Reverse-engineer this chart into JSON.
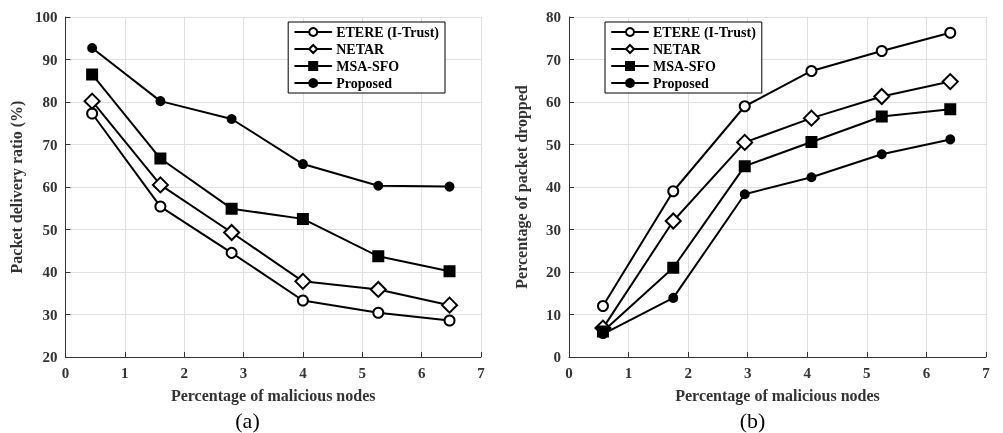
{
  "chart_data": [
    {
      "type": "line",
      "xlabel": "Percentage of malicious nodes",
      "ylabel": "Packet delivery ratio (%)",
      "xlim": [
        0,
        7
      ],
      "xticks": [
        0,
        1,
        2,
        3,
        4,
        5,
        6,
        7
      ],
      "ylim": [
        20,
        100
      ],
      "yticks": [
        20,
        30,
        40,
        50,
        60,
        70,
        80,
        90,
        100
      ],
      "grid": true,
      "legend": "top right",
      "line_style": "solid",
      "annotations": [
        "(a)"
      ],
      "x": [
        0.45,
        1.6,
        2.8,
        4.0,
        5.27,
        6.47
      ],
      "series": [
        {
          "name": "ETERE (I-Trust)",
          "color": "#000000",
          "marker": "circle",
          "values": [
            77.3,
            55.4,
            44.5,
            33.3,
            30.4,
            28.6
          ]
        },
        {
          "name": "NETAR",
          "color": "#000000",
          "marker": "diamond",
          "values": [
            80.2,
            60.5,
            49.3,
            37.8,
            35.9,
            32.2
          ]
        },
        {
          "name": "MSA-SFO",
          "color": "#000000",
          "marker": "square",
          "values": [
            86.5,
            66.7,
            54.9,
            52.5,
            43.7,
            40.2
          ]
        },
        {
          "name": "Proposed",
          "color": "#000000",
          "marker": "circle",
          "values": [
            92.7,
            80.2,
            76.0,
            65.4,
            60.3,
            60.1
          ]
        }
      ]
    },
    {
      "type": "line",
      "xlabel": "Percentage of malicious nodes",
      "ylabel": "Percentage of packet dropped",
      "xlim": [
        0,
        7
      ],
      "xticks": [
        0,
        1,
        2,
        3,
        4,
        5,
        6,
        7
      ],
      "ylim": [
        0,
        80
      ],
      "yticks": [
        0,
        10,
        20,
        30,
        40,
        50,
        60,
        70,
        80
      ],
      "grid": true,
      "legend": "top left",
      "line_style": "solid",
      "annotations": [
        "(b)"
      ],
      "x": [
        0.57,
        1.75,
        2.95,
        4.07,
        5.25,
        6.4
      ],
      "series": [
        {
          "name": "ETERE (I-Trust)",
          "color": "#000000",
          "marker": "circle",
          "values": [
            12,
            39,
            59,
            67.3,
            72,
            76.3
          ]
        },
        {
          "name": "NETAR",
          "color": "#000000",
          "marker": "diamond",
          "values": [
            6.8,
            32,
            50.5,
            56.2,
            61.3,
            64.8
          ]
        },
        {
          "name": "MSA-SFO",
          "color": "#000000",
          "marker": "square",
          "values": [
            6,
            21,
            44.9,
            50.6,
            56.6,
            58.3
          ]
        },
        {
          "name": "Proposed",
          "color": "#000000",
          "marker": "circle",
          "values": [
            5.4,
            13.9,
            38.3,
            42.3,
            47.7,
            51.2
          ]
        }
      ]
    }
  ]
}
